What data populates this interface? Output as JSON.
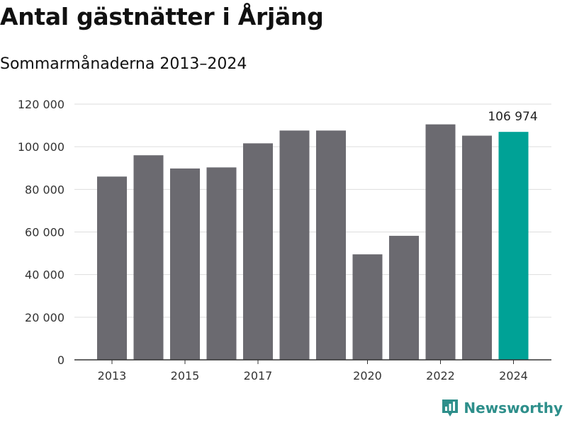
{
  "header": {
    "title": "Antal gästnätter i Årjäng",
    "subtitle": "Sommarmånaderna 2013–2024"
  },
  "brand": {
    "name": "Newsworthy",
    "icon": "newsworthy-logo-icon",
    "color": "#2e8f8b"
  },
  "chart_data": {
    "type": "bar",
    "title": "Antal gästnätter i Årjäng",
    "subtitle": "Sommarmånaderna 2013–2024",
    "xlabel": "",
    "ylabel": "",
    "categories": [
      "2013",
      "2014",
      "2015",
      "2016",
      "2017",
      "2018",
      "2019",
      "2020",
      "2021",
      "2022",
      "2023",
      "2024"
    ],
    "values": [
      86000,
      96000,
      89800,
      90300,
      101600,
      107600,
      107600,
      49500,
      58200,
      110500,
      105200,
      106974
    ],
    "highlight_index": 11,
    "highlight_label": "106 974",
    "x_tick_labels": [
      "2013",
      "2015",
      "2017",
      "2020",
      "2022",
      "2024"
    ],
    "y_ticks": [
      0,
      20000,
      40000,
      60000,
      80000,
      100000,
      120000
    ],
    "y_tick_labels": [
      "0",
      "20 000",
      "40 000",
      "60 000",
      "80 000",
      "100 000",
      "120 000"
    ],
    "ylim": [
      0,
      120000
    ],
    "grid": true,
    "colors": {
      "bar": "#6b6a70",
      "highlight": "#00a296",
      "grid": "#dddddd",
      "axis": "#333333"
    }
  }
}
